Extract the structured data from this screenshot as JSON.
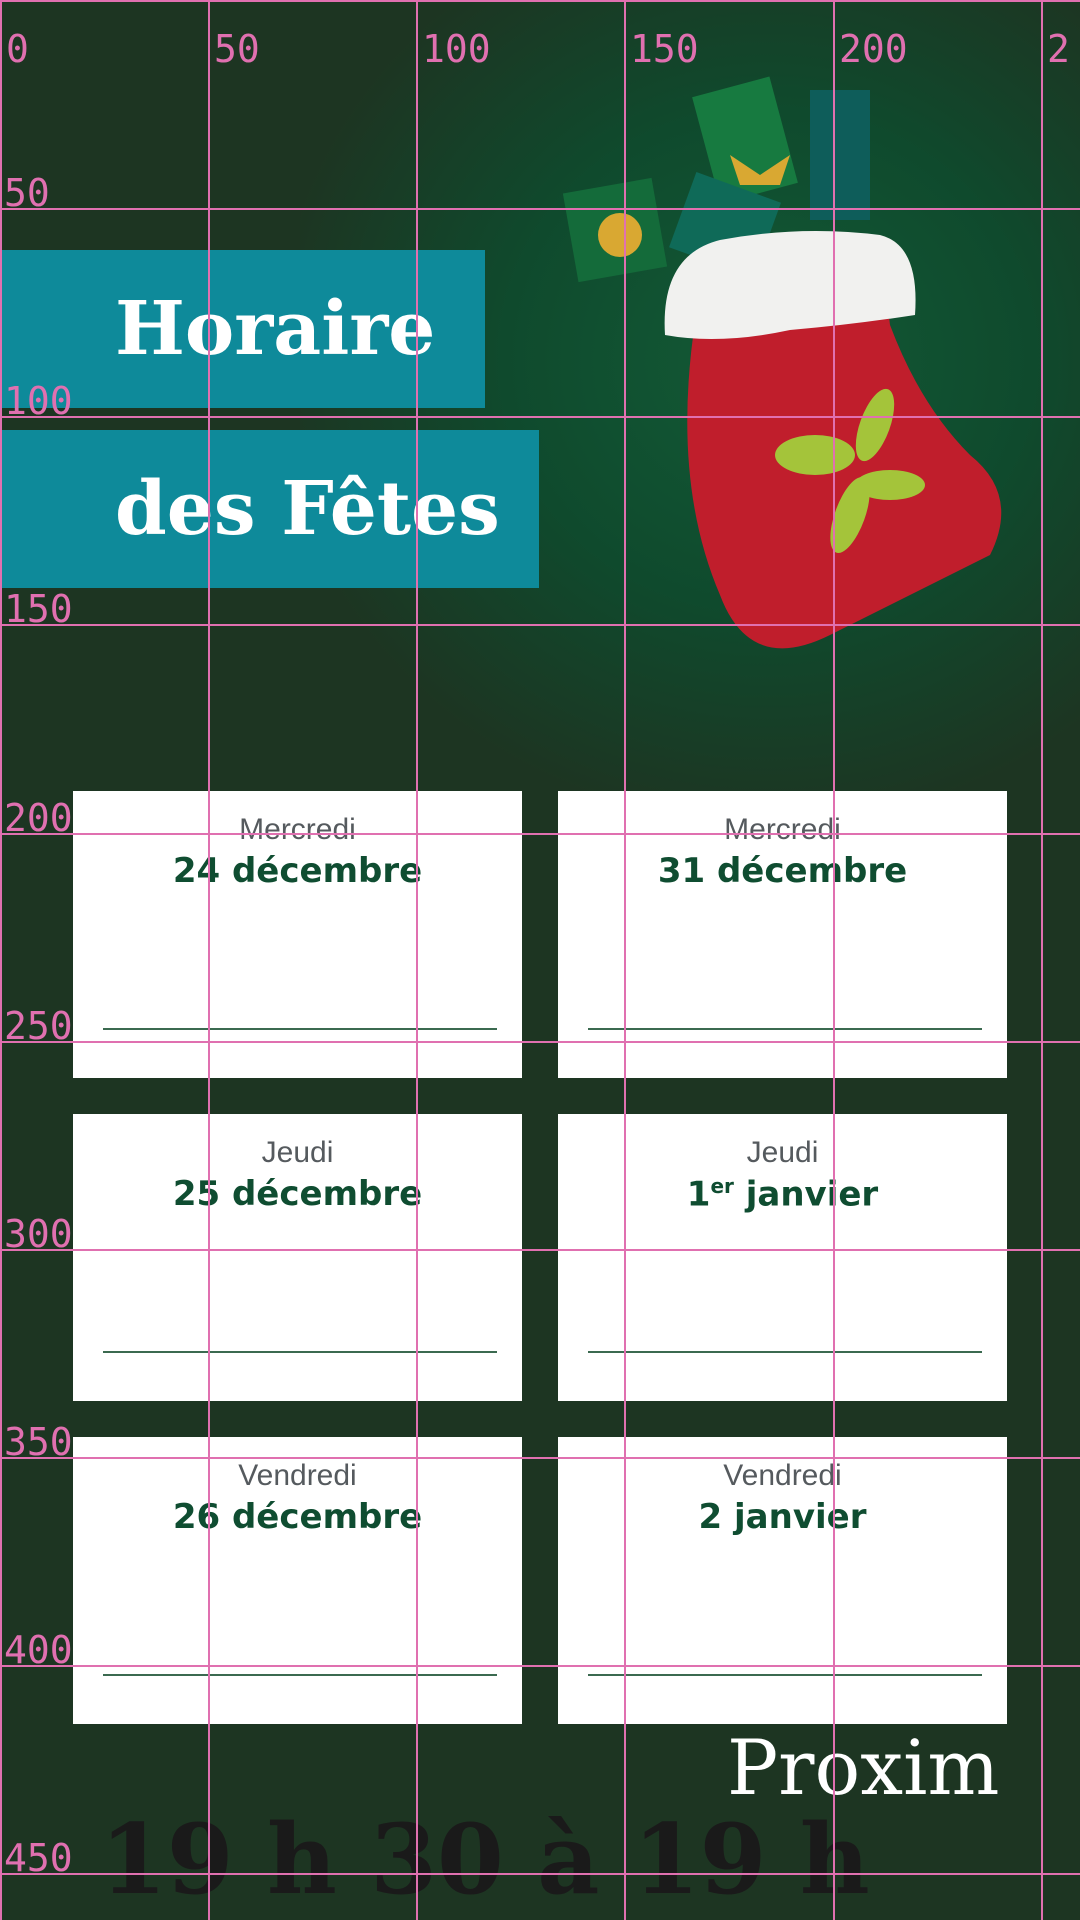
{
  "title": {
    "line1": "Horaire",
    "line2": "des Fêtes"
  },
  "colors": {
    "background": "#1d3522",
    "title_box": "#0e8a9a",
    "date_text": "#0f4d31",
    "grid": "#e070b0"
  },
  "cards": [
    {
      "day": "Mercredi",
      "date": "24 décembre"
    },
    {
      "day": "Mercredi",
      "date": "31 décembre"
    },
    {
      "day": "Jeudi",
      "date": "25 décembre"
    },
    {
      "day": "Jeudi",
      "date": "1",
      "date_sup": "er",
      "date_rest": " janvier"
    },
    {
      "day": "Vendredi",
      "date": "26 décembre"
    },
    {
      "day": "Vendredi",
      "date": "2 janvier"
    }
  ],
  "logo": "Proxim",
  "hours_text": "19 h 30 à 19 h",
  "grid": {
    "x_labels": [
      "0",
      "50",
      "100",
      "150",
      "200",
      "2"
    ],
    "y_labels": [
      "50",
      "100",
      "150",
      "200",
      "250",
      "300",
      "350",
      "400",
      "450"
    ]
  }
}
